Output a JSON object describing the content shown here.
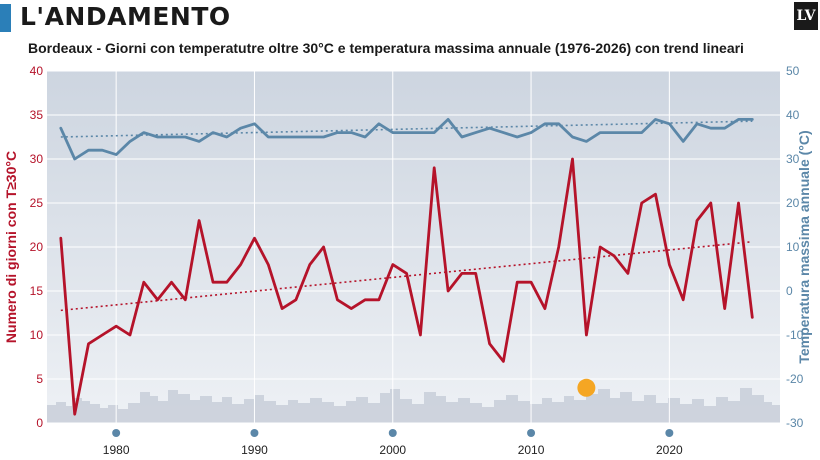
{
  "header": {
    "title": "L'ANDAMENTO",
    "logo_text": "LV"
  },
  "chart_data": {
    "type": "line",
    "title": "Bordeaux - Giorni con temperatutre oltre 30°C e temperatura massima annuale (1976-2026) con trend lineari",
    "ylabel_left": "Numero di giorni con T≥30°C",
    "ylabel_right": "Temperatura massima annuale (°C)",
    "xlim": [
      1975,
      2028
    ],
    "ylim_left": [
      0,
      40
    ],
    "ylim_right": [
      -30,
      50
    ],
    "x_ticks": [
      1980,
      1990,
      2000,
      2010,
      2020
    ],
    "y_ticks_left": [
      0,
      5,
      10,
      15,
      20,
      25,
      30,
      35,
      40
    ],
    "y_ticks_right": [
      -30,
      -20,
      -10,
      0,
      10,
      20,
      30,
      40,
      50
    ],
    "grid": true,
    "x": [
      1976,
      1977,
      1978,
      1979,
      1980,
      1981,
      1982,
      1983,
      1984,
      1985,
      1986,
      1987,
      1988,
      1989,
      1990,
      1991,
      1992,
      1993,
      1994,
      1995,
      1996,
      1997,
      1998,
      1999,
      2000,
      2001,
      2002,
      2003,
      2004,
      2005,
      2006,
      2007,
      2008,
      2009,
      2010,
      2011,
      2012,
      2013,
      2014,
      2015,
      2016,
      2017,
      2018,
      2019,
      2020,
      2021,
      2022,
      2023,
      2024,
      2025,
      2026
    ],
    "series": [
      {
        "name": "",
        "axis": "left",
        "color": "#b5132a",
        "values": [
          21,
          1,
          9,
          10,
          11,
          10,
          16,
          14,
          16,
          14,
          23,
          16,
          16,
          18,
          21,
          18,
          13,
          14,
          18,
          20,
          14,
          13,
          14,
          14,
          18,
          17,
          10,
          29,
          15,
          17,
          17,
          9,
          7,
          16,
          16,
          13,
          20,
          30,
          10,
          20,
          19,
          17,
          25,
          26,
          18,
          14,
          23,
          25,
          13,
          25,
          12
        ]
      },
      {
        "name": "",
        "axis": "right",
        "color": "#5b87a8",
        "values": [
          37,
          30,
          32,
          32,
          31,
          34,
          36,
          35,
          35,
          35,
          34,
          36,
          35,
          37,
          38,
          35,
          35,
          35,
          35,
          35,
          36,
          36,
          35,
          38,
          36,
          36,
          36,
          36,
          39,
          35,
          36,
          37,
          36,
          35,
          36,
          38,
          38,
          35,
          34,
          36,
          36,
          36,
          36,
          39,
          38,
          34,
          38,
          37,
          37,
          39,
          39
        ]
      }
    ],
    "trends": [
      {
        "axis": "left",
        "color": "#b5132a",
        "from": [
          1976,
          12.8
        ],
        "to": [
          2026,
          20.6
        ]
      },
      {
        "axis": "right",
        "color": "#5b87a8",
        "from": [
          1976,
          35.0
        ],
        "to": [
          2026,
          38.6
        ]
      }
    ],
    "marker": {
      "x": 2014,
      "y_left": 4,
      "color": "#f5a623"
    }
  }
}
